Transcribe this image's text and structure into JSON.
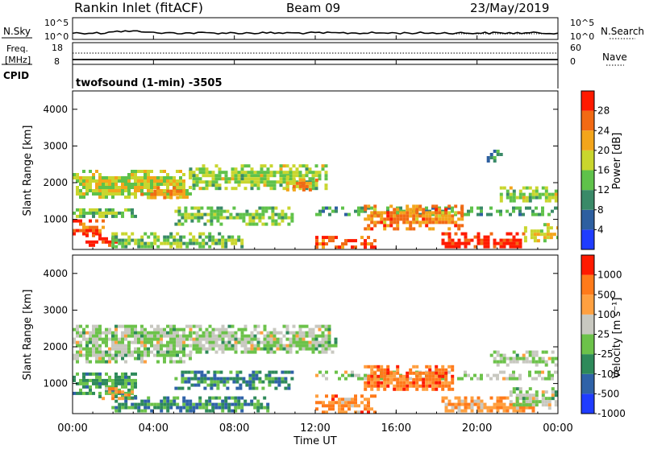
{
  "header": {
    "station": "Rankin Inlet (fitACF)",
    "beam": "Beam 09",
    "date": "23/May/2019"
  },
  "top_panels": {
    "nsky_label": "N.Sky",
    "nsky_ticks": [
      "10^5",
      "10^0"
    ],
    "nsearch_label": "N.Search",
    "nsearch_ticks": [
      "10^5",
      "10^0"
    ],
    "freq_label_1": "Freq.",
    "freq_label_2": "[MHz]",
    "freq_ticks": [
      "18",
      "8"
    ],
    "nave_label": "Nave",
    "nave_ticks": [
      "60",
      "0"
    ],
    "cpid_label": "CPID",
    "cpid_value": "twofsound (1-min) -3505"
  },
  "chart_data": [
    {
      "type": "heatmap",
      "name": "power",
      "ylabel": "Slant Range [km]",
      "y_ticks": [
        1000,
        2000,
        3000,
        4000
      ],
      "ylim": [
        180,
        4500
      ],
      "colorbar_label": "Power [dB]",
      "colorbar_ticks": [
        "4",
        "8",
        "12",
        "16",
        "20",
        "24",
        "28"
      ],
      "colorbar_colors": [
        "#1f3cff",
        "#2e5fa0",
        "#3a8a68",
        "#5fc24a",
        "#c9d62e",
        "#f3a51b",
        "#f26a14",
        "#ff1a00"
      ],
      "bands": [
        {
          "t": [
            0.0,
            0.24
          ],
          "r": [
            1600,
            2350
          ],
          "v": 0.55
        },
        {
          "t": [
            0.14,
            0.22
          ],
          "r": [
            1550,
            1900
          ],
          "v": 0.75
        },
        {
          "t": [
            0.24,
            0.52
          ],
          "r": [
            1850,
            2500
          ],
          "v": 0.5
        },
        {
          "t": [
            0.44,
            0.5
          ],
          "r": [
            1800,
            2200
          ],
          "v": 0.72
        },
        {
          "t": [
            0.0,
            0.06
          ],
          "r": [
            600,
            1000
          ],
          "v": 0.85
        },
        {
          "t": [
            0.0,
            0.13
          ],
          "r": [
            1050,
            1300
          ],
          "v": 0.45
        },
        {
          "t": [
            0.02,
            0.09
          ],
          "r": [
            250,
            600
          ],
          "v": 0.95
        },
        {
          "t": [
            0.21,
            0.45
          ],
          "r": [
            900,
            1350
          ],
          "v": 0.45
        },
        {
          "t": [
            0.08,
            0.35
          ],
          "r": [
            250,
            650
          ],
          "v": 0.45
        },
        {
          "t": [
            0.5,
            1.0
          ],
          "r": [
            1150,
            1350
          ],
          "v": 0.35
        },
        {
          "t": [
            0.6,
            0.8
          ],
          "r": [
            750,
            1400
          ],
          "v": 0.75
        },
        {
          "t": [
            0.5,
            0.62
          ],
          "r": [
            250,
            550
          ],
          "v": 0.85
        },
        {
          "t": [
            0.76,
            0.93
          ],
          "r": [
            250,
            650
          ],
          "v": 0.97
        },
        {
          "t": [
            0.93,
            1.0
          ],
          "r": [
            400,
            900
          ],
          "v": 0.6
        },
        {
          "t": [
            0.88,
            1.0
          ],
          "r": [
            1500,
            1900
          ],
          "v": 0.5
        },
        {
          "t": [
            0.84,
            0.88
          ],
          "r": [
            2550,
            2900
          ],
          "v": 0.3
        }
      ]
    },
    {
      "type": "heatmap",
      "name": "velocity",
      "ylabel": "Slant Range [km]",
      "y_ticks": [
        1000,
        2000,
        3000,
        4000
      ],
      "ylim": [
        180,
        4500
      ],
      "colorbar_label": "Velocity [m s⁻¹]",
      "colorbar_ticks": [
        "1000",
        "500",
        "100",
        "25",
        "-25",
        "-100",
        "-500",
        "-1000"
      ],
      "colorbar_colors": [
        "#1f3cff",
        "#2f62a8",
        "#2e8a5a",
        "#6cc24a",
        "#c8c8c0",
        "#ffa040",
        "#ff7a1a",
        "#ff1a00"
      ],
      "bands": [
        {
          "t": [
            0.0,
            0.24
          ],
          "r": [
            1600,
            2600
          ],
          "v": 0.5
        },
        {
          "t": [
            0.24,
            0.54
          ],
          "r": [
            1850,
            2600
          ],
          "v": 0.5
        },
        {
          "t": [
            0.0,
            0.13
          ],
          "r": [
            600,
            1300
          ],
          "v": 0.35
        },
        {
          "t": [
            0.06,
            0.12
          ],
          "r": [
            600,
            900
          ],
          "v": 0.75
        },
        {
          "t": [
            0.21,
            0.45
          ],
          "r": [
            900,
            1350
          ],
          "v": 0.3
        },
        {
          "t": [
            0.08,
            0.4
          ],
          "r": [
            250,
            650
          ],
          "v": 0.3
        },
        {
          "t": [
            0.5,
            1.0
          ],
          "r": [
            1150,
            1350
          ],
          "v": 0.5
        },
        {
          "t": [
            0.6,
            0.78
          ],
          "r": [
            800,
            1500
          ],
          "v": 0.82
        },
        {
          "t": [
            0.5,
            0.62
          ],
          "r": [
            250,
            700
          ],
          "v": 0.75
        },
        {
          "t": [
            0.76,
            0.95
          ],
          "r": [
            250,
            650
          ],
          "v": 0.72
        },
        {
          "t": [
            0.9,
            1.0
          ],
          "r": [
            300,
            900
          ],
          "v": 0.5
        },
        {
          "t": [
            0.86,
            1.0
          ],
          "r": [
            1500,
            1900
          ],
          "v": 0.5
        }
      ]
    }
  ],
  "time_axis": {
    "ticks": [
      "00:00",
      "04:00",
      "08:00",
      "12:00",
      "16:00",
      "20:00",
      "00:00"
    ],
    "label": "Time UT"
  }
}
